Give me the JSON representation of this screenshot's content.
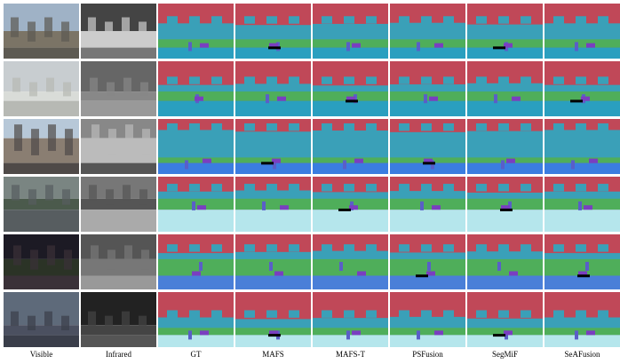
{
  "columns": [
    "Visible",
    "Infrared",
    "GT",
    "MAFS",
    "MAFS-T",
    "PSFusion",
    "SegMiF",
    "SeAFusion"
  ]
}
